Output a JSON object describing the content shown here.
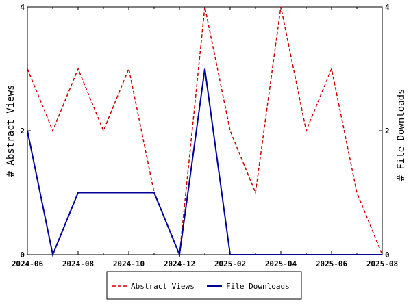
{
  "chart_data": {
    "type": "line",
    "x": [
      "2024-06",
      "2024-07",
      "2024-08",
      "2024-09",
      "2024-10",
      "2024-11",
      "2024-12",
      "2025-01",
      "2025-02",
      "2025-03",
      "2025-04",
      "2025-05",
      "2025-06",
      "2025-07",
      "2025-08"
    ],
    "x_tick_labels": [
      "2024-06",
      "2024-08",
      "2024-10",
      "2024-12",
      "2025-02",
      "2025-04",
      "2025-06",
      "2025-08"
    ],
    "y_left_label": "# Abstract Views",
    "y_right_label": "# File Downloads",
    "y_left_ticks": [
      "0",
      "2",
      "4"
    ],
    "y_right_ticks": [
      "0",
      "2",
      "4"
    ],
    "ylim": [
      0,
      4
    ],
    "legend_position": "bottom-center",
    "grid": false,
    "series": [
      {
        "name": "Abstract Views",
        "axis": "left",
        "color": "#cc0000",
        "style": "dashed",
        "values": [
          3,
          2,
          3,
          2,
          3,
          1,
          0,
          4,
          2,
          1,
          4,
          2,
          3,
          1,
          0
        ]
      },
      {
        "name": "File Downloads",
        "axis": "right",
        "color": "#000099",
        "style": "solid",
        "values": [
          2,
          0,
          1,
          1,
          1,
          1,
          0,
          3,
          0,
          0,
          0,
          0,
          0,
          0,
          0
        ]
      }
    ]
  }
}
